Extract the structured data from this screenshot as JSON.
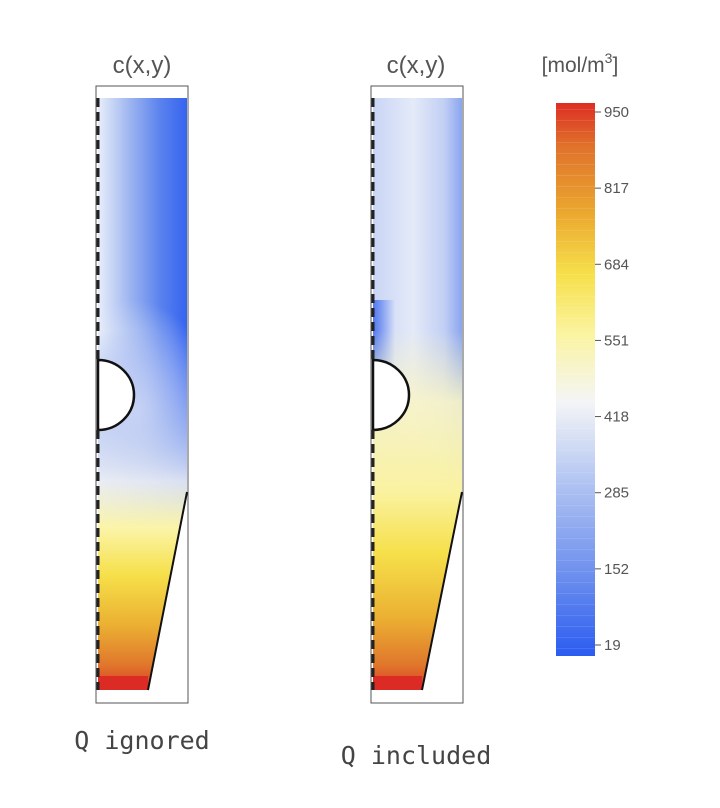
{
  "chart_data": [
    {
      "type": "heatmap",
      "title": "c(x,y)",
      "caption": "Q ignored",
      "colorbar_ref": "shared"
    },
    {
      "type": "heatmap",
      "title": "c(x,y)",
      "caption": "Q included",
      "colorbar_ref": "shared"
    }
  ],
  "colorbar": {
    "unit_prefix": "[mol/m",
    "unit_power": "3",
    "unit_suffix": "]",
    "ticks": [
      950,
      817,
      684,
      551,
      418,
      285,
      152,
      19
    ],
    "range": [
      19,
      950
    ],
    "colors": [
      "#2b5cf0",
      "#6e90ee",
      "#b4c6f2",
      "#f4f5f6",
      "#fbf4a2",
      "#f6e04a",
      "#eba82f",
      "#e0732b",
      "#dd2d24"
    ]
  }
}
